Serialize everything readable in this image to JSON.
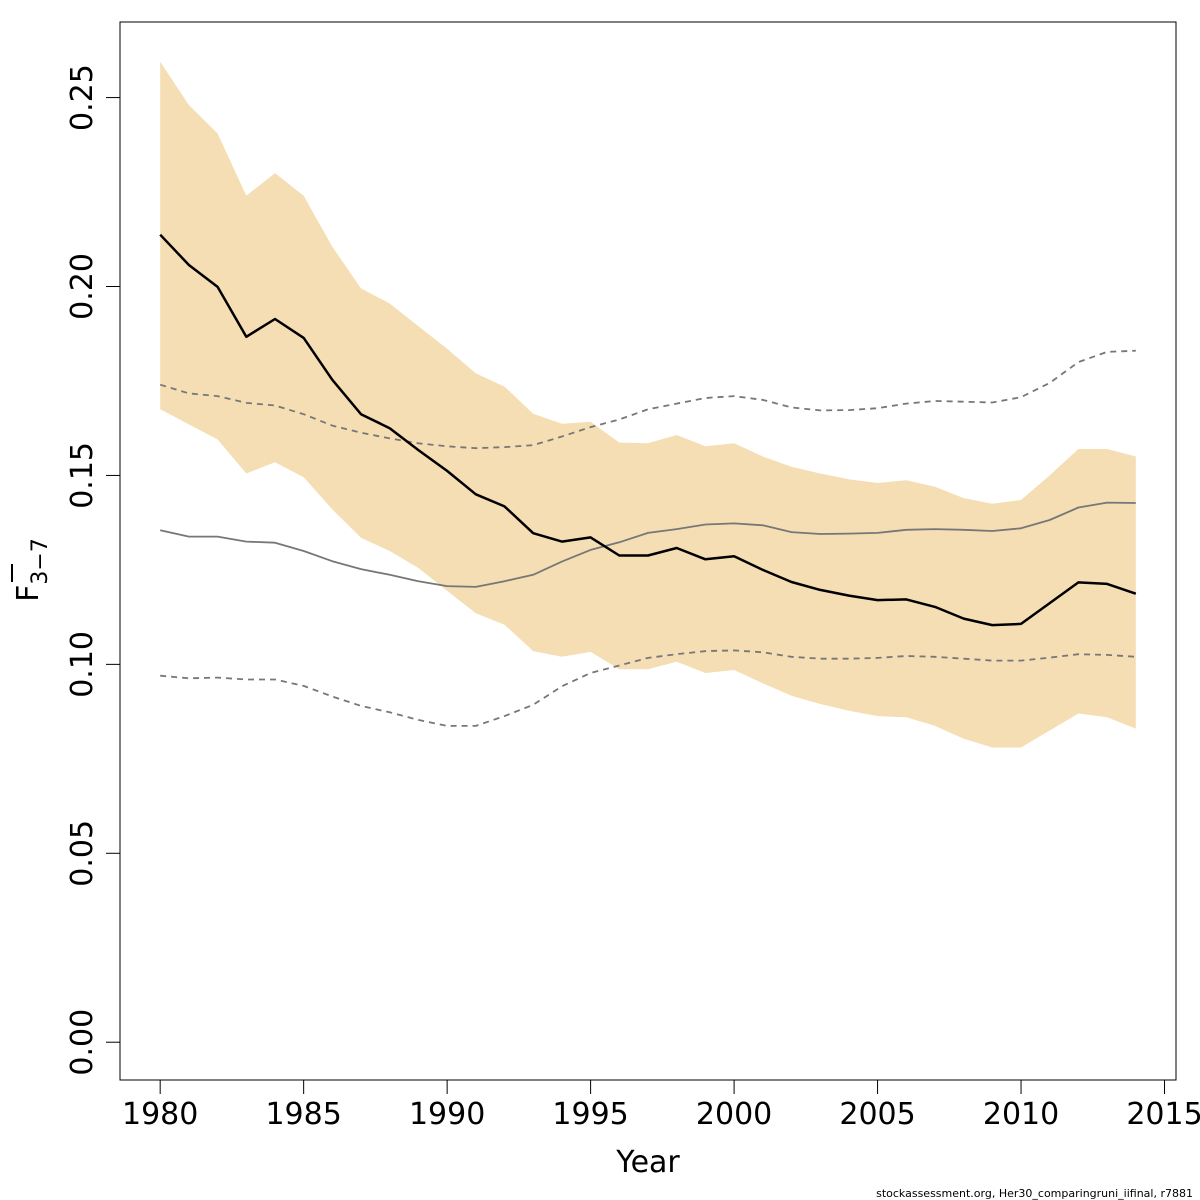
{
  "chart_data": {
    "type": "line",
    "xlabel": "Year",
    "ylabel_main": "F",
    "ylabel_sub": "3−7",
    "xlim": [
      1978.6,
      2015.4
    ],
    "ylim": [
      -0.01,
      0.27
    ],
    "x_ticks": [
      1980,
      1985,
      1990,
      1995,
      2000,
      2005,
      2010,
      2015
    ],
    "y_ticks": [
      0.0,
      0.05,
      0.1,
      0.15,
      0.2,
      0.25
    ],
    "y_tick_labels": [
      "0.00",
      "0.05",
      "0.10",
      "0.15",
      "0.20",
      "0.25"
    ],
    "x": [
      1980,
      1981,
      1982,
      1983,
      1984,
      1985,
      1986,
      1987,
      1988,
      1989,
      1990,
      1991,
      1992,
      1993,
      1994,
      1995,
      1996,
      1997,
      1998,
      1999,
      2000,
      2001,
      2002,
      2003,
      2004,
      2005,
      2006,
      2007,
      2008,
      2009,
      2010,
      2011,
      2012,
      2013,
      2014
    ],
    "series": [
      {
        "role": "confidence-band",
        "color": "#f5deb3",
        "lower": [
          0.1675,
          0.1635,
          0.1595,
          0.1505,
          0.1535,
          0.1495,
          0.141,
          0.1335,
          0.13,
          0.1255,
          0.1195,
          0.1135,
          0.1105,
          0.1035,
          0.102,
          0.1033,
          0.0987,
          0.0987,
          0.1007,
          0.0977,
          0.0985,
          0.095,
          0.0917,
          0.0895,
          0.0877,
          0.0863,
          0.086,
          0.0837,
          0.0803,
          0.078,
          0.078,
          0.0825,
          0.087,
          0.086,
          0.083
        ],
        "upper": [
          0.2595,
          0.248,
          0.2405,
          0.224,
          0.23,
          0.224,
          0.2105,
          0.1995,
          0.1955,
          0.1895,
          0.1835,
          0.177,
          0.1735,
          0.1663,
          0.1637,
          0.1642,
          0.1587,
          0.1585,
          0.1607,
          0.1577,
          0.1585,
          0.155,
          0.1523,
          0.1505,
          0.149,
          0.148,
          0.1487,
          0.147,
          0.144,
          0.1425,
          0.1435,
          0.15,
          0.157,
          0.157,
          0.155
        ]
      },
      {
        "role": "estimate",
        "color": "#000000",
        "values": [
          0.2137,
          0.2057,
          0.1999,
          0.1867,
          0.1914,
          0.1864,
          0.1753,
          0.1662,
          0.1625,
          0.1567,
          0.1512,
          0.145,
          0.1418,
          0.1347,
          0.1325,
          0.1336,
          0.1288,
          0.1288,
          0.1308,
          0.1278,
          0.1286,
          0.125,
          0.1218,
          0.1197,
          0.1182,
          0.117,
          0.1172,
          0.1152,
          0.1121,
          0.1104,
          0.1107,
          0.1162,
          0.1217,
          0.1213,
          0.1187
        ]
      },
      {
        "role": "comparison-estimate",
        "color": "#777777",
        "values": [
          0.1355,
          0.1338,
          0.1338,
          0.1325,
          0.1322,
          0.13,
          0.1273,
          0.1252,
          0.1237,
          0.122,
          0.1207,
          0.1205,
          0.122,
          0.1237,
          0.1272,
          0.1303,
          0.1323,
          0.1348,
          0.1358,
          0.137,
          0.1373,
          0.1368,
          0.135,
          0.1345,
          0.1346,
          0.1348,
          0.1356,
          0.1358,
          0.1356,
          0.1353,
          0.136,
          0.1382,
          0.1415,
          0.1428,
          0.1427
        ]
      },
      {
        "role": "comparison-upper",
        "color": "#777777",
        "dashed": true,
        "values": [
          0.174,
          0.1717,
          0.171,
          0.1692,
          0.1685,
          0.1662,
          0.1632,
          0.1613,
          0.1598,
          0.1585,
          0.1577,
          0.1572,
          0.1575,
          0.158,
          0.1603,
          0.1628,
          0.1648,
          0.1675,
          0.169,
          0.1705,
          0.171,
          0.17,
          0.168,
          0.1672,
          0.1673,
          0.1678,
          0.169,
          0.1697,
          0.1695,
          0.1693,
          0.1707,
          0.1745,
          0.18,
          0.1827,
          0.183
        ]
      },
      {
        "role": "comparison-lower",
        "color": "#777777",
        "dashed": true,
        "values": [
          0.097,
          0.0963,
          0.0965,
          0.096,
          0.096,
          0.0943,
          0.0915,
          0.089,
          0.0873,
          0.0853,
          0.0837,
          0.0837,
          0.0863,
          0.0893,
          0.0942,
          0.0977,
          0.0997,
          0.1017,
          0.1027,
          0.1035,
          0.1037,
          0.1032,
          0.102,
          0.1015,
          0.1015,
          0.1017,
          0.1022,
          0.102,
          0.1015,
          0.101,
          0.101,
          0.1018,
          0.1027,
          0.1025,
          0.102
        ]
      }
    ]
  },
  "credit": "stockassessment.org, Her30_comparingruni_iifinal, r7881"
}
